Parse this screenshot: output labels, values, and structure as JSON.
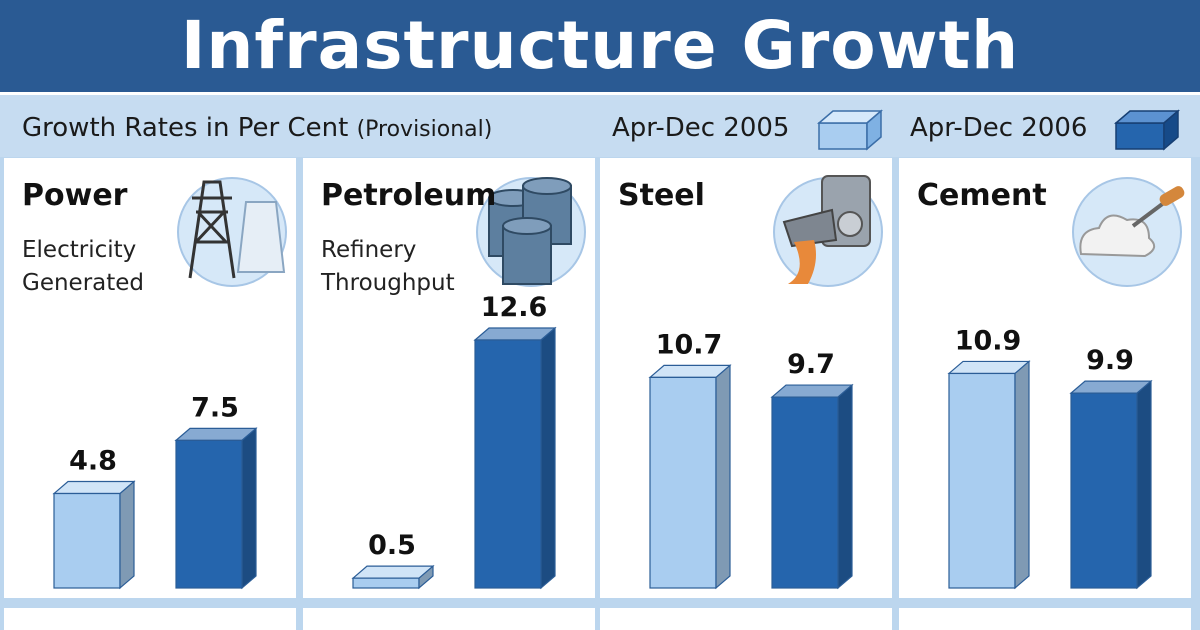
{
  "title": "Infrastructure Growth",
  "subheader": {
    "caption": "Growth Rates in Per Cent",
    "caption_note": "(Provisional)"
  },
  "legend": [
    {
      "label": "Apr-Dec 2005",
      "color": "#a9cdf0",
      "icon": "light-cube-icon"
    },
    {
      "label": "Apr-Dec 2006",
      "color": "#2565ad",
      "icon": "dark-cube-icon"
    }
  ],
  "colors": {
    "header_bg": "#2a5a93",
    "panel_bg": "#ffffff",
    "bar_light_front": "#a9cdf0",
    "bar_dark_front": "#2565ad"
  },
  "chart_data": {
    "type": "bar",
    "title": "Infrastructure Growth",
    "ylabel": "Growth Rates in Per Cent",
    "series_names": [
      "Apr-Dec 2005",
      "Apr-Dec 2006"
    ],
    "panels": [
      {
        "name": "Power",
        "subtitle": [
          "Electricity",
          "Generated"
        ],
        "icon": "power-tower-icon",
        "values": [
          4.8,
          7.5
        ]
      },
      {
        "name": "Petroleum",
        "subtitle": [
          "Refinery",
          "Throughput"
        ],
        "icon": "oil-barrels-icon",
        "values": [
          0.5,
          12.6
        ]
      },
      {
        "name": "Steel",
        "subtitle": [],
        "icon": "steel-ladle-icon",
        "values": [
          10.7,
          9.7
        ]
      },
      {
        "name": "Cement",
        "subtitle": [],
        "icon": "cement-trowel-icon",
        "values": [
          10.9,
          9.9
        ]
      }
    ],
    "ylim": [
      0,
      12.6
    ]
  }
}
